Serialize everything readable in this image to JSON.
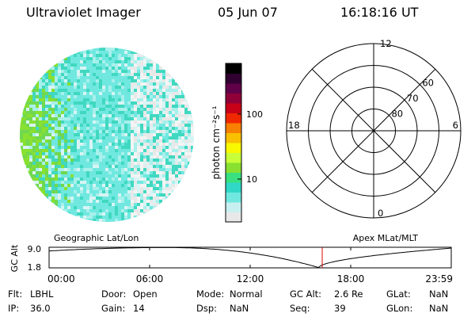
{
  "header": {
    "title": "Ultraviolet Imager",
    "date": "05 Jun 07",
    "time": "16:18:16 UT"
  },
  "colorbar": {
    "label": "photon cm⁻²s⁻¹",
    "ticks": [
      {
        "label": "100",
        "value": 100
      },
      {
        "label": "10",
        "value": 10
      }
    ],
    "min_value": 2.2,
    "max_value": 600,
    "colors": [
      "#e8e8e8",
      "#c8f0f0",
      "#70e8e0",
      "#30d8c8",
      "#38e080",
      "#88e030",
      "#c8ff38",
      "#f8f800",
      "#f8c000",
      "#f88000",
      "#f02800",
      "#c80018",
      "#900038",
      "#600048",
      "#300030",
      "#000000"
    ]
  },
  "polar": {
    "lat_rings": [
      {
        "label": "80",
        "value": 80
      },
      {
        "label": "70",
        "value": 70
      },
      {
        "label": "60",
        "value": 60
      }
    ],
    "outer_lat": 50,
    "mlt_labels": [
      {
        "label": "12",
        "hour": 12
      },
      {
        "label": "18",
        "hour": 18
      },
      {
        "label": "6",
        "hour": 6
      },
      {
        "label": "0",
        "hour": 0
      }
    ]
  },
  "timeline": {
    "left_label": "Geographic Lat/Lon",
    "right_label": "Apex MLat/MLT",
    "y_axis_label": "GC Alt",
    "y_ticks": [
      "9.0",
      "1.8"
    ],
    "y_max": 9.0,
    "y_min": 1.8,
    "x_ticks": [
      "00:00",
      "06:00",
      "12:00",
      "18:00",
      "23:59"
    ],
    "current_time_hours": 16.3,
    "marker_color": "#e00000"
  },
  "info_rows": [
    [
      {
        "key": "Flt:",
        "value": "LBHL"
      },
      {
        "key": "Door:",
        "value": "Open"
      },
      {
        "key": "Mode:",
        "value": "Normal"
      },
      {
        "key": "GC Alt:",
        "value": "2.6 Re"
      },
      {
        "key": "GLat:",
        "value": "NaN"
      }
    ],
    [
      {
        "key": "IP:",
        "value": "36.0"
      },
      {
        "key": "Gain:",
        "value": "14"
      },
      {
        "key": "Dsp:",
        "value": "NaN"
      },
      {
        "key": "Seq:",
        "value": "39"
      },
      {
        "key": "GLon:",
        "value": "NaN"
      }
    ]
  ]
}
